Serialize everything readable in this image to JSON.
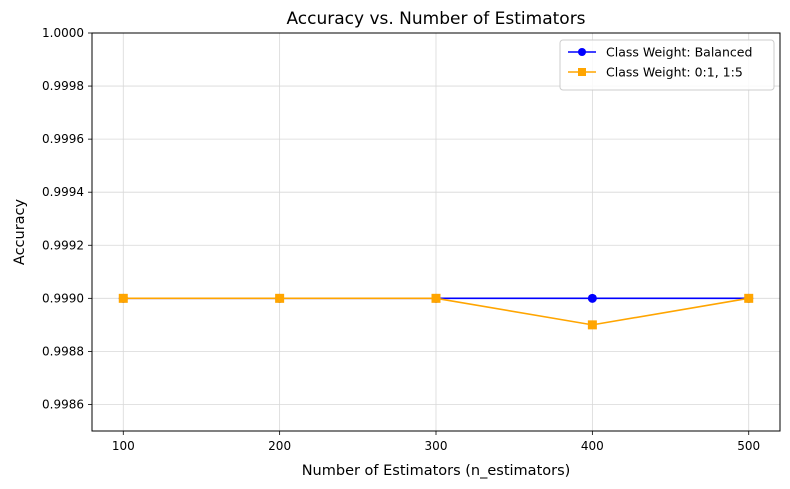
{
  "chart_data": {
    "type": "line",
    "title": "Accuracy vs. Number of Estimators",
    "xlabel": "Number of Estimators (n_estimators)",
    "ylabel": "Accuracy",
    "x": [
      100,
      200,
      300,
      400,
      500
    ],
    "x_tick_labels": [
      "100",
      "200",
      "300",
      "400",
      "500"
    ],
    "xlim": [
      80,
      520
    ],
    "ylim": [
      0.9985,
      1.0
    ],
    "y_ticks": [
      0.9986,
      0.9988,
      0.999,
      0.9992,
      0.9994,
      0.9996,
      0.9998,
      1.0
    ],
    "y_tick_labels": [
      "0.9986",
      "0.9988",
      "0.9990",
      "0.9992",
      "0.9994",
      "0.9996",
      "0.9998",
      "1.0000"
    ],
    "grid": true,
    "legend_position": "top-right",
    "series": [
      {
        "name": "Class Weight: Balanced",
        "values": [
          0.999,
          0.999,
          0.999,
          0.999,
          0.999
        ],
        "color": "#0000ff",
        "marker": "circle"
      },
      {
        "name": "Class Weight: 0:1, 1:5",
        "values": [
          0.999,
          0.999,
          0.999,
          0.9989,
          0.999
        ],
        "color": "#ffa500",
        "marker": "square"
      }
    ]
  }
}
